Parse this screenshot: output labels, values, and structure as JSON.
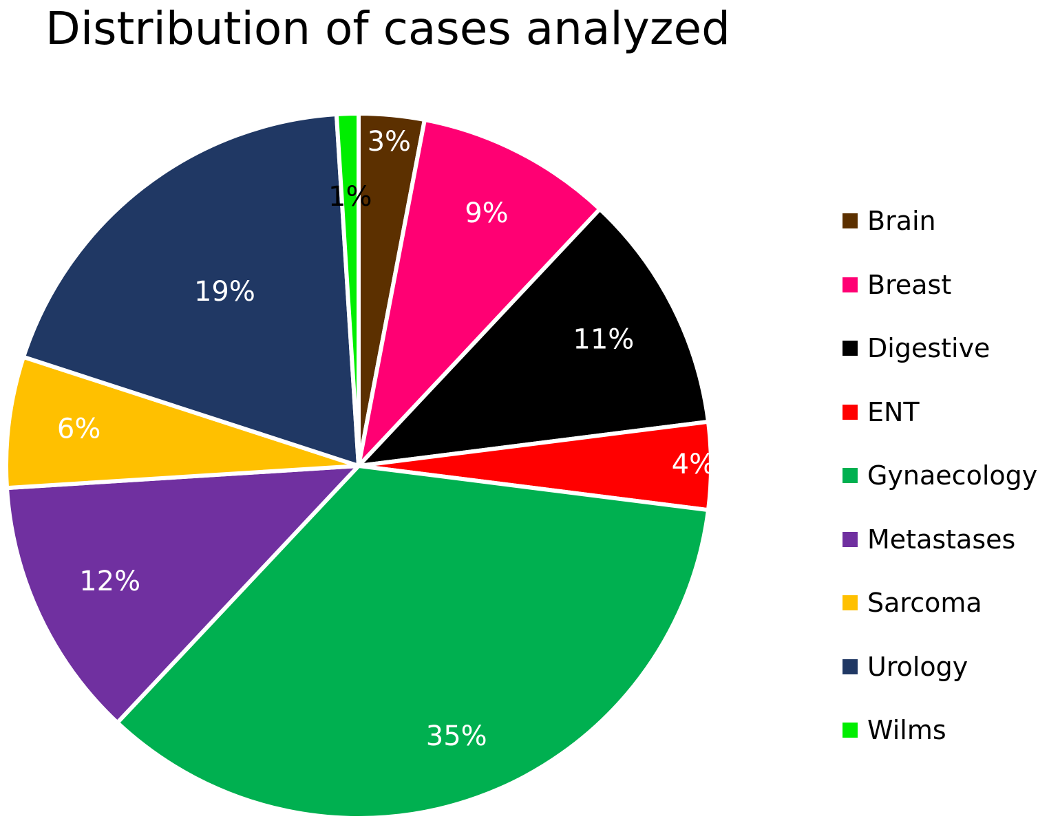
{
  "chart_data": {
    "type": "pie",
    "title": "Distribution of cases analyzed",
    "categories": [
      "Brain",
      "Breast",
      "Digestive",
      "ENT",
      "Gynaecology",
      "Metastases",
      "Sarcoma",
      "Urology",
      "Wilms"
    ],
    "values": [
      3,
      9,
      11,
      4,
      35,
      12,
      6,
      19,
      1
    ],
    "labels": [
      "3%",
      "9%",
      "11%",
      "4%",
      "35%",
      "12%",
      "6%",
      "19%",
      "1%"
    ],
    "colors": [
      "#5c3000",
      "#ff0073",
      "#000000",
      "#ff0000",
      "#00b050",
      "#7030a0",
      "#ffc000",
      "#203864",
      "#00ee00"
    ],
    "label_colors": [
      "#ffffff",
      "#ffffff",
      "#ffffff",
      "#ffffff",
      "#ffffff",
      "#ffffff",
      "#ffffff",
      "#ffffff",
      "#000000"
    ],
    "legend_position": "right",
    "start_angle": "12 o'clock, clockwise"
  }
}
